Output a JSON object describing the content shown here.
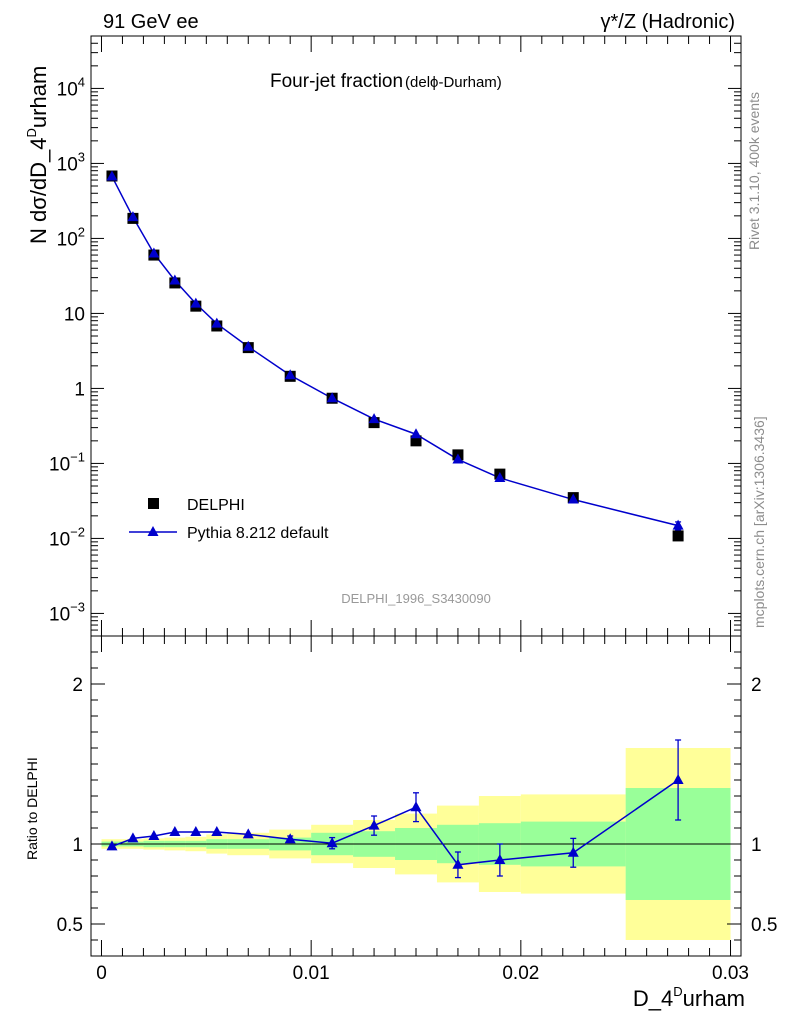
{
  "header": {
    "left": "91 GeV ee",
    "right": "γ*/Z (Hadronic)"
  },
  "side_text": {
    "rivet": "Rivet 3.1.10,  400k events",
    "mcplots": "mcplots.cern.ch [arXiv:1306.3436]"
  },
  "analysis_label": "DELPHI_1996_S3430090",
  "colors": {
    "mc": "#0000cc",
    "band_inner": "#99ff99",
    "band_outer": "#ffff99",
    "data": "#000000"
  },
  "chart_data": [
    {
      "type": "scatter",
      "title": "Four-jet fraction",
      "title_sub": "(delϕ-Durham)",
      "xlabel": "D_4^Durham",
      "xlabel_main": "D_4",
      "xlabel_sup": "D",
      "xlabel_tail": "urham",
      "ylabel": "N dσ/dD_4^Durham",
      "ylabel_main": "N dσ/dD_4",
      "ylabel_sup": "D",
      "ylabel_tail": "urham",
      "yscale": "log",
      "xlim": [
        -0.0005,
        0.0305
      ],
      "ylim": [
        0.0005,
        50000
      ],
      "ytick_labels": [
        {
          "v": 0.001,
          "base": "10",
          "exp": "−3"
        },
        {
          "v": 0.01,
          "base": "10",
          "exp": "−2"
        },
        {
          "v": 0.1,
          "base": "10",
          "exp": "−1"
        },
        {
          "v": 1,
          "base": "1",
          "exp": ""
        },
        {
          "v": 10,
          "base": "10",
          "exp": ""
        },
        {
          "v": 100,
          "base": "10",
          "exp": "2"
        },
        {
          "v": 1000,
          "base": "10",
          "exp": "3"
        },
        {
          "v": 10000,
          "base": "10",
          "exp": "4"
        }
      ],
      "legend_position": "lower-left",
      "series": [
        {
          "name": "DELPHI",
          "marker": "square",
          "x": [
            0.0005,
            0.0015,
            0.0025,
            0.0035,
            0.0045,
            0.0055,
            0.007,
            0.009,
            0.011,
            0.013,
            0.015,
            0.017,
            0.019,
            0.0225,
            0.0275
          ],
          "y": [
            680,
            185,
            60,
            25.5,
            12.5,
            6.8,
            3.5,
            1.45,
            0.74,
            0.35,
            0.2,
            0.13,
            0.072,
            0.035,
            0.0108
          ]
        },
        {
          "name": "Pythia 8.212 default",
          "marker": "triangle",
          "x": [
            0.0005,
            0.0015,
            0.0025,
            0.0035,
            0.0045,
            0.0055,
            0.007,
            0.009,
            0.011,
            0.013,
            0.015,
            0.017,
            0.019,
            0.0225,
            0.0275
          ],
          "y": [
            670,
            192,
            63,
            27.5,
            13.5,
            7.3,
            3.6,
            1.5,
            0.74,
            0.39,
            0.245,
            0.113,
            0.064,
            0.033,
            0.0148
          ],
          "yerr": [
            0,
            0,
            0,
            0,
            0,
            0,
            0,
            0,
            0,
            0,
            0,
            0,
            0,
            0,
            0.0018
          ]
        }
      ]
    },
    {
      "type": "scatter",
      "ylabel": "Ratio to DELPHI",
      "xlabel": "D_4^Durham",
      "xlim": [
        -0.0005,
        0.0305
      ],
      "ylim": [
        0.3,
        2.3
      ],
      "yticks": [
        0.5,
        1,
        2
      ],
      "ytick_labels": [
        "0.5",
        "1",
        "2"
      ],
      "xticks": [
        0,
        0.01,
        0.02,
        0.03
      ],
      "xtick_labels": [
        "0",
        "0.01",
        "0.02",
        "0.03"
      ],
      "bins": [
        {
          "lo": 0,
          "hi": 0.001,
          "inner": 0.015,
          "outer": 0.03
        },
        {
          "lo": 0.001,
          "hi": 0.002,
          "inner": 0.015,
          "outer": 0.03
        },
        {
          "lo": 0.002,
          "hi": 0.003,
          "inner": 0.02,
          "outer": 0.035
        },
        {
          "lo": 0.003,
          "hi": 0.004,
          "inner": 0.02,
          "outer": 0.04
        },
        {
          "lo": 0.004,
          "hi": 0.005,
          "inner": 0.02,
          "outer": 0.045
        },
        {
          "lo": 0.005,
          "hi": 0.006,
          "inner": 0.03,
          "outer": 0.06
        },
        {
          "lo": 0.006,
          "hi": 0.008,
          "inner": 0.03,
          "outer": 0.07
        },
        {
          "lo": 0.008,
          "hi": 0.01,
          "inner": 0.04,
          "outer": 0.09
        },
        {
          "lo": 0.01,
          "hi": 0.012,
          "inner": 0.07,
          "outer": 0.12
        },
        {
          "lo": 0.012,
          "hi": 0.014,
          "inner": 0.08,
          "outer": 0.15
        },
        {
          "lo": 0.014,
          "hi": 0.016,
          "inner": 0.1,
          "outer": 0.19
        },
        {
          "lo": 0.016,
          "hi": 0.018,
          "inner": 0.12,
          "outer": 0.24
        },
        {
          "lo": 0.018,
          "hi": 0.02,
          "inner": 0.13,
          "outer": 0.3
        },
        {
          "lo": 0.02,
          "hi": 0.025,
          "inner": 0.14,
          "outer": 0.31
        },
        {
          "lo": 0.025,
          "hi": 0.03,
          "inner": 0.35,
          "outer": 0.6
        }
      ],
      "series": [
        {
          "name": "Pythia 8.212 default",
          "x": [
            0.0005,
            0.0015,
            0.0025,
            0.0035,
            0.0045,
            0.0055,
            0.007,
            0.009,
            0.011,
            0.013,
            0.015,
            0.017,
            0.019,
            0.0225,
            0.0275
          ],
          "y": [
            0.985,
            1.035,
            1.05,
            1.075,
            1.075,
            1.075,
            1.06,
            1.03,
            1.005,
            1.115,
            1.23,
            0.87,
            0.9,
            0.945,
            1.4
          ],
          "yerr": [
            0,
            0,
            0,
            0,
            0,
            0,
            0,
            0.02,
            0.035,
            0.06,
            0.09,
            0.08,
            0.1,
            0.09,
            0.25
          ]
        }
      ]
    }
  ]
}
